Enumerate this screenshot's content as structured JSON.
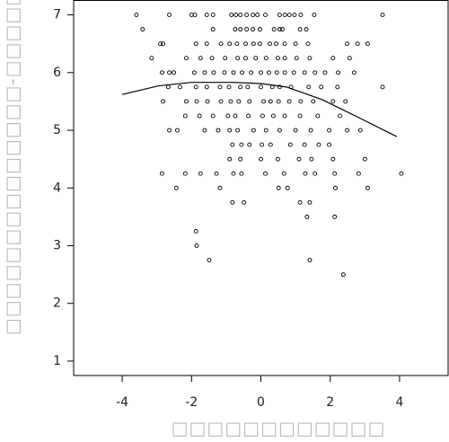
{
  "chart_data": {
    "type": "scatter",
    "x_label": "□□□□□□□□□□□□",
    "y_label": "□□□□□□□□□□□□□□-□□□□□",
    "xlim": [
      -5.4,
      5.4
    ],
    "xticks": [
      -4,
      -2,
      0,
      2,
      4
    ],
    "ylim": [
      0.75,
      7.25
    ],
    "yticks": [
      1,
      2,
      3,
      4,
      5,
      6,
      7
    ],
    "series": [
      {
        "type": "scatter",
        "color": "#000000",
        "x": [
          -3.59,
          -2.64,
          -2.0,
          -1.9,
          -1.56,
          -1.38,
          -0.85,
          -0.72,
          -0.59,
          -0.41,
          -0.23,
          -0.1,
          0.13,
          0.54,
          0.69,
          0.82,
          0.97,
          1.15,
          1.54,
          3.51,
          -3.41,
          -1.38,
          -0.74,
          -0.59,
          -0.41,
          -0.23,
          -0.03,
          0.38,
          0.54,
          0.62,
          1.13,
          1.31,
          -2.9,
          -2.82,
          -1.87,
          -1.56,
          -1.15,
          -0.9,
          -0.69,
          -0.44,
          -0.21,
          -0.03,
          0.26,
          0.44,
          0.69,
          1.0,
          1.36,
          2.49,
          2.79,
          3.08,
          -3.15,
          -2.15,
          -1.74,
          -1.41,
          -1.03,
          -0.67,
          -0.44,
          -0.15,
          0.15,
          0.49,
          0.69,
          1.03,
          1.41,
          2.08,
          2.56,
          -2.85,
          -2.64,
          -2.51,
          -1.92,
          -1.62,
          -1.36,
          -1.05,
          -0.79,
          -0.54,
          -0.28,
          0,
          0.23,
          0.46,
          0.69,
          0.95,
          1.26,
          1.56,
          1.85,
          2.23,
          2.69,
          -2.67,
          -2.33,
          -1.87,
          -1.56,
          -1.18,
          -0.92,
          -0.59,
          -0.38,
          0,
          0.33,
          0.54,
          0.87,
          1.38,
          1.74,
          2.21,
          3.51,
          -2.82,
          -2.15,
          -1.85,
          -1.54,
          -1.15,
          -0.87,
          -0.64,
          -0.33,
          0.08,
          0.28,
          0.51,
          0.82,
          1.15,
          1.51,
          2.08,
          2.44,
          -2.18,
          -1.77,
          -1.38,
          -0.95,
          -0.74,
          -0.36,
          0.05,
          0.36,
          0.69,
          1.13,
          1.64,
          2.28,
          -2.64,
          -2.41,
          -1.62,
          -1.23,
          -0.9,
          -0.67,
          -0.21,
          0.15,
          0.54,
          1.0,
          1.44,
          1.97,
          2.49,
          2.87,
          -0.82,
          -0.56,
          -0.33,
          0.03,
          0.28,
          0.85,
          1.26,
          1.67,
          1.97,
          -0.9,
          -0.59,
          0,
          0.49,
          1.1,
          1.46,
          2.08,
          3.0,
          -2.85,
          -2.18,
          -1.74,
          -1.28,
          -0.79,
          -0.56,
          0.13,
          0.67,
          1.28,
          1.56,
          2.13,
          2.82,
          4.05,
          -2.44,
          -1.18,
          0.51,
          0.77,
          2.15,
          3.08,
          -0.82,
          -0.49,
          1.13,
          1.41,
          1.33,
          2.13,
          -1.87,
          -1.85,
          -1.49,
          1.41,
          2.38
        ],
        "values": [
          7,
          7,
          7,
          7,
          7,
          7,
          7,
          7,
          7,
          7,
          7,
          7,
          7,
          7,
          7,
          7,
          7,
          7,
          7,
          7,
          6.75,
          6.75,
          6.75,
          6.75,
          6.75,
          6.75,
          6.75,
          6.75,
          6.75,
          6.75,
          6.75,
          6.75,
          6.5,
          6.5,
          6.5,
          6.5,
          6.5,
          6.5,
          6.5,
          6.5,
          6.5,
          6.5,
          6.5,
          6.5,
          6.5,
          6.5,
          6.5,
          6.5,
          6.5,
          6.5,
          6.25,
          6.25,
          6.25,
          6.25,
          6.25,
          6.25,
          6.25,
          6.25,
          6.25,
          6.25,
          6.25,
          6.25,
          6.25,
          6.25,
          6.25,
          6,
          6,
          6,
          6,
          6,
          6,
          6,
          6,
          6,
          6,
          6,
          6,
          6,
          6,
          6,
          6,
          6,
          6,
          6,
          6,
          5.75,
          5.75,
          5.75,
          5.75,
          5.75,
          5.75,
          5.75,
          5.75,
          5.75,
          5.75,
          5.75,
          5.75,
          5.75,
          5.75,
          5.75,
          5.75,
          5.5,
          5.5,
          5.5,
          5.5,
          5.5,
          5.5,
          5.5,
          5.5,
          5.5,
          5.5,
          5.5,
          5.5,
          5.5,
          5.5,
          5.5,
          5.5,
          5.25,
          5.25,
          5.25,
          5.25,
          5.25,
          5.25,
          5.25,
          5.25,
          5.25,
          5.25,
          5.25,
          5.25,
          5,
          5,
          5,
          5,
          5,
          5,
          5,
          5,
          5,
          5,
          5,
          5,
          5,
          5,
          4.75,
          4.75,
          4.75,
          4.75,
          4.75,
          4.75,
          4.75,
          4.75,
          4.75,
          4.5,
          4.5,
          4.5,
          4.5,
          4.5,
          4.5,
          4.5,
          4.5,
          4.25,
          4.25,
          4.25,
          4.25,
          4.25,
          4.25,
          4.25,
          4.25,
          4.25,
          4.25,
          4.25,
          4.25,
          4.25,
          4,
          4,
          4,
          4,
          4,
          4,
          3.75,
          3.75,
          3.75,
          3.75,
          3.5,
          3.5,
          3.25,
          3,
          2.75,
          2.75,
          2.5
        ]
      },
      {
        "type": "line",
        "color": "#000000",
        "x": [
          -4,
          -2.95,
          -2,
          -0.79,
          0,
          0.74,
          1.77,
          2.79,
          3.92
        ],
        "values": [
          5.62,
          5.77,
          5.83,
          5.83,
          5.81,
          5.75,
          5.53,
          5.23,
          4.89
        ]
      }
    ]
  }
}
